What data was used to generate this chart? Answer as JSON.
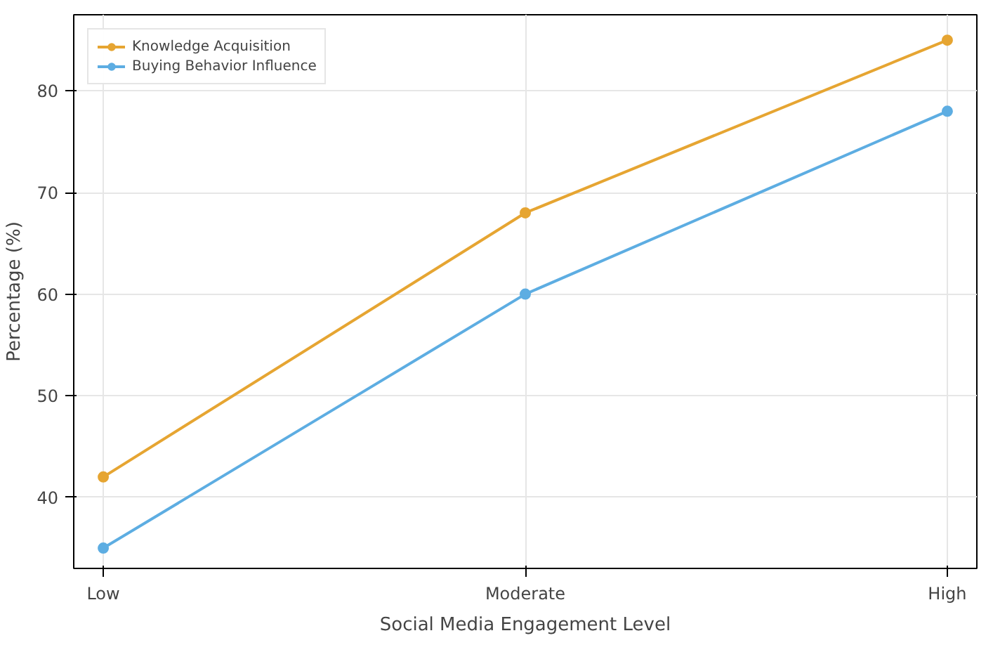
{
  "chart_data": {
    "type": "line",
    "xlabel": "Social Media Engagement Level",
    "ylabel": "Percentage (%)",
    "categories": [
      "Low",
      "Moderate",
      "High"
    ],
    "series": [
      {
        "name": "Knowledge Acquisition",
        "color": "#e6a532",
        "values": [
          42,
          68,
          85
        ]
      },
      {
        "name": "Buying Behavior Influence",
        "color": "#5dade2",
        "values": [
          35,
          60,
          78
        ]
      }
    ],
    "ylim": [
      33,
      87.5
    ],
    "yticks": [
      40,
      50,
      60,
      70,
      80
    ],
    "grid": true,
    "legend": "top left",
    "marker": "circle",
    "line_style": "solid"
  }
}
